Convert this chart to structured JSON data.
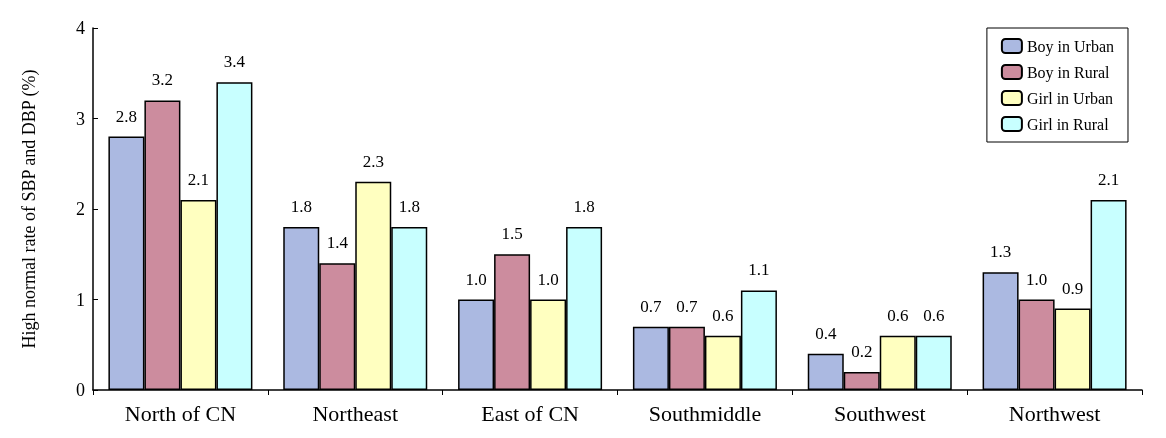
{
  "chart_data": {
    "type": "bar",
    "ylabel": "High normal rate of SBP and DBP (%)",
    "categories": [
      "North of CN",
      "Northeast",
      "East of CN",
      "Southmiddle",
      "Southwest",
      "Northwest"
    ],
    "series": [
      {
        "name": "Boy in Urban",
        "color": "#abb9e1",
        "values": [
          2.8,
          1.8,
          1.0,
          0.7,
          0.4,
          1.3
        ],
        "value_labels": [
          "2.8",
          "1.8",
          "1.0",
          "0.7",
          "0.4",
          "1.3"
        ]
      },
      {
        "name": "Boy in Rural",
        "color": "#cc8c9e",
        "values": [
          3.2,
          1.4,
          1.5,
          0.7,
          0.2,
          1.0
        ],
        "value_labels": [
          "3.2",
          "1.4",
          "1.5",
          "0.7",
          "0.2",
          "1.0"
        ]
      },
      {
        "name": "Girl in Urban",
        "color": "#ffffc0",
        "values": [
          2.1,
          2.3,
          1.0,
          0.6,
          0.6,
          0.9
        ],
        "value_labels": [
          "2.1",
          "2.3",
          "1.0",
          "0.6",
          "0.6",
          "0.9"
        ]
      },
      {
        "name": "Girl in Rural",
        "color": "#c8ffff",
        "values": [
          3.4,
          1.8,
          1.8,
          1.1,
          0.6,
          2.1
        ],
        "value_labels": [
          "3.4",
          "1.8",
          "1.8",
          "1.1",
          "0.6",
          "2.1"
        ]
      }
    ],
    "ylim": [
      0,
      4
    ],
    "yticks": [
      0,
      1,
      2,
      3,
      4
    ],
    "grid": false,
    "legend": "top right"
  }
}
